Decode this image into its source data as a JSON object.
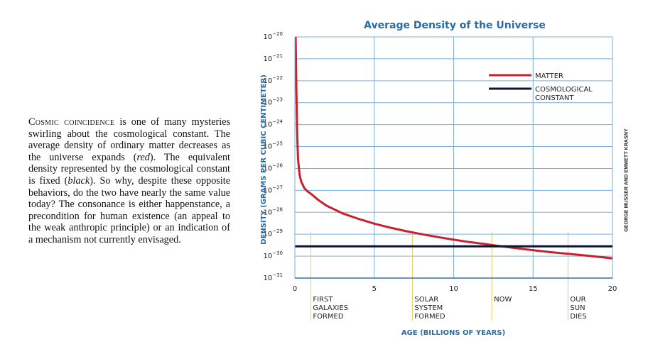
{
  "caption": {
    "lead": "Cosmic coincidence",
    "p1": " is one of many mysteries swirling about the cosmological constant. The average density of ordinary matter decreases as the universe expands (",
    "red": "red",
    "p2": "). The equivalent density represented by the cosmological constant is fixed (",
    "black": "black",
    "p3": "). So why, despite these opposite behaviors, do the two have nearly the same value today? The consonance is either happenstance, a precondition for human existence (an appeal to the weak anthropic principle) or an indication of a mechanism not currently envisaged."
  },
  "credit": "GEORGE MUSSER AND EMMETT KRASNY",
  "chart_data": {
    "type": "line",
    "title": "Average Density of the Universe",
    "xlabel": "AGE (BILLIONS OF YEARS)",
    "ylabel": "DENSITY (GRAMS PER CUBIC CENTIMETER)",
    "xlim": [
      0,
      20
    ],
    "ylim_log10": [
      -31,
      -20
    ],
    "y_scale": "log",
    "grid": true,
    "x_ticks": [
      0,
      5,
      10,
      15,
      20
    ],
    "y_ticks_exponents": [
      -20,
      -21,
      -22,
      -23,
      -24,
      -25,
      -26,
      -27,
      -28,
      -29,
      -30,
      -31
    ],
    "y_tick_base": "10",
    "legend_placement": "top-right",
    "series": [
      {
        "name": "MATTER",
        "color": "#c8202f",
        "x": [
          0.05,
          0.1,
          0.15,
          0.2,
          0.3,
          0.4,
          0.6,
          0.8,
          1,
          1.5,
          2,
          3,
          4,
          5,
          6,
          7,
          8,
          9,
          10,
          11,
          12,
          13,
          14,
          15,
          16,
          17,
          18,
          19,
          20
        ],
        "log10_y": [
          -20.0,
          -22.6,
          -24.6,
          -25.6,
          -26.3,
          -26.6,
          -26.9,
          -27.05,
          -27.15,
          -27.45,
          -27.7,
          -28.05,
          -28.3,
          -28.52,
          -28.7,
          -28.86,
          -29.0,
          -29.13,
          -29.25,
          -29.36,
          -29.45,
          -29.55,
          -29.64,
          -29.73,
          -29.81,
          -29.88,
          -29.95,
          -30.02,
          -30.1
        ]
      },
      {
        "name": "COSMOLOGICAL CONSTANT",
        "color": "#0d1530",
        "x": [
          0,
          20
        ],
        "log10_y": [
          -29.55,
          -29.55
        ]
      }
    ],
    "legend": [
      {
        "lines": [
          "MATTER"
        ],
        "color": "#c8202f"
      },
      {
        "lines": [
          "COSMOLOGICAL",
          "CONSTANT"
        ],
        "color": "#0d1530"
      }
    ],
    "annotations": [
      {
        "x": 1,
        "lines": [
          "FIRST",
          "GALAXIES",
          "FORMED"
        ]
      },
      {
        "x": 7.4,
        "lines": [
          "SOLAR",
          "SYSTEM",
          "FORMED"
        ]
      },
      {
        "x": 12.4,
        "lines": [
          "NOW"
        ]
      },
      {
        "x": 17.2,
        "lines": [
          "OUR",
          "SUN",
          "DIES"
        ]
      }
    ],
    "colors": {
      "title": "#2a6aa6",
      "axis_label": "#2a6aa6",
      "grid": "#7ab0d8",
      "annotation_line": "#e6cf55",
      "tick_text": "#222222"
    }
  }
}
